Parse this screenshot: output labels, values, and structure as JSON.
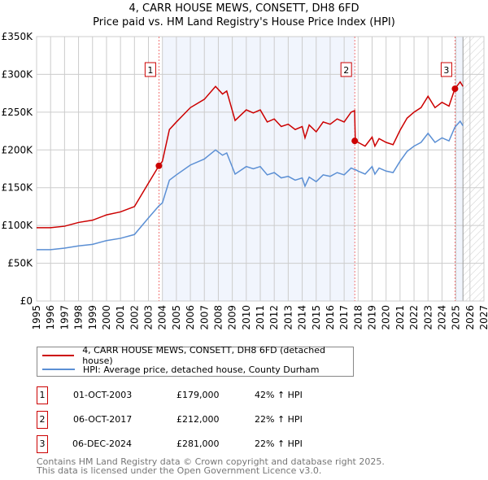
{
  "chart_data": {
    "type": "line",
    "title": "4, CARR HOUSE MEWS, CONSETT, DH8 6FD",
    "subtitle": "Price paid vs. HM Land Registry's House Price Index (HPI)",
    "xlim": [
      1995,
      2027
    ],
    "ylim": [
      0,
      350000
    ],
    "x_ticks": [
      "1995",
      "1996",
      "1997",
      "1998",
      "1999",
      "2000",
      "2001",
      "2002",
      "2003",
      "2004",
      "2005",
      "2006",
      "2007",
      "2008",
      "2009",
      "2010",
      "2011",
      "2012",
      "2013",
      "2014",
      "2015",
      "2016",
      "2017",
      "2018",
      "2019",
      "2020",
      "2021",
      "2022",
      "2023",
      "2024",
      "2025",
      "2026",
      "2027"
    ],
    "y_ticks": [
      {
        "v": 0,
        "label": "£0"
      },
      {
        "v": 50000,
        "label": "£50K"
      },
      {
        "v": 100000,
        "label": "£100K"
      },
      {
        "v": 150000,
        "label": "£150K"
      },
      {
        "v": 200000,
        "label": "£200K"
      },
      {
        "v": 250000,
        "label": "£250K"
      },
      {
        "v": 300000,
        "label": "£300K"
      },
      {
        "v": 350000,
        "label": "£350K"
      }
    ],
    "grid": true,
    "x": [
      1995,
      1996,
      1997,
      1998,
      1999,
      2000,
      2001,
      2002,
      2003,
      2003.75,
      2004,
      2004.5,
      2005,
      2006,
      2007,
      2007.8,
      2008.3,
      2008.6,
      2009.2,
      2010,
      2010.5,
      2011,
      2011.5,
      2012,
      2012.5,
      2013,
      2013.5,
      2014,
      2014.2,
      2014.5,
      2015,
      2015.5,
      2016,
      2016.5,
      2017,
      2017.5,
      2017.75,
      2017.8,
      2018,
      2018.5,
      2019,
      2019.2,
      2019.5,
      2020,
      2020.5,
      2021,
      2021.5,
      2022,
      2022.5,
      2023,
      2023.5,
      2024,
      2024.5,
      2024.92,
      2025.3,
      2025.5
    ],
    "series": [
      {
        "name": "4, CARR HOUSE MEWS, CONSETT, DH8 6FD (detached house)",
        "color": "#cc0000",
        "values": [
          97,
          97,
          99,
          104,
          107,
          114,
          118,
          125,
          156,
          179,
          185,
          227,
          237,
          256,
          267,
          284,
          274,
          278,
          239,
          253,
          249,
          253,
          237,
          241,
          231,
          234,
          227,
          231,
          216,
          233,
          224,
          237,
          234,
          241,
          237,
          250,
          252,
          212,
          210,
          205,
          217,
          205,
          215,
          210,
          207,
          226,
          242,
          250,
          256,
          271,
          256,
          263,
          258,
          281,
          290,
          284
        ]
      },
      {
        "name": "HPI: Average price, detached house, County Durham",
        "color": "#5b8fd4",
        "values": [
          68,
          68,
          70,
          73,
          75,
          80,
          83,
          88,
          110,
          126,
          130,
          160,
          167,
          180,
          188,
          200,
          193,
          196,
          168,
          178,
          175,
          178,
          167,
          170,
          163,
          165,
          160,
          163,
          152,
          164,
          158,
          167,
          165,
          170,
          167,
          176,
          174,
          174,
          172,
          168,
          178,
          168,
          176,
          172,
          170,
          185,
          198,
          205,
          210,
          222,
          210,
          216,
          212,
          230,
          238,
          232
        ]
      }
    ],
    "value_unit": "thousand GBP",
    "sales": [
      {
        "n": "1",
        "date": "01-OCT-2003",
        "x": 2003.75,
        "price_value": 179000,
        "price": "£179,000",
        "hpi": "42% ↑ HPI"
      },
      {
        "n": "2",
        "date": "06-OCT-2017",
        "x": 2017.76,
        "price_value": 212000,
        "price": "£212,000",
        "hpi": "22% ↑ HPI"
      },
      {
        "n": "3",
        "date": "06-DEC-2024",
        "x": 2024.93,
        "price_value": 281000,
        "price": "£281,000",
        "hpi": "22% ↑ HPI"
      }
    ],
    "shaded_ranges": [
      [
        2004,
        2017.75
      ],
      [
        2024.93,
        2025.5
      ]
    ],
    "forecast_from": 2025.5,
    "legend_placement": "below"
  },
  "footer": {
    "line1": "Contains HM Land Registry data © Crown copyright and database right 2025.",
    "line2": "This data is licensed under the Open Government Licence v3.0."
  }
}
